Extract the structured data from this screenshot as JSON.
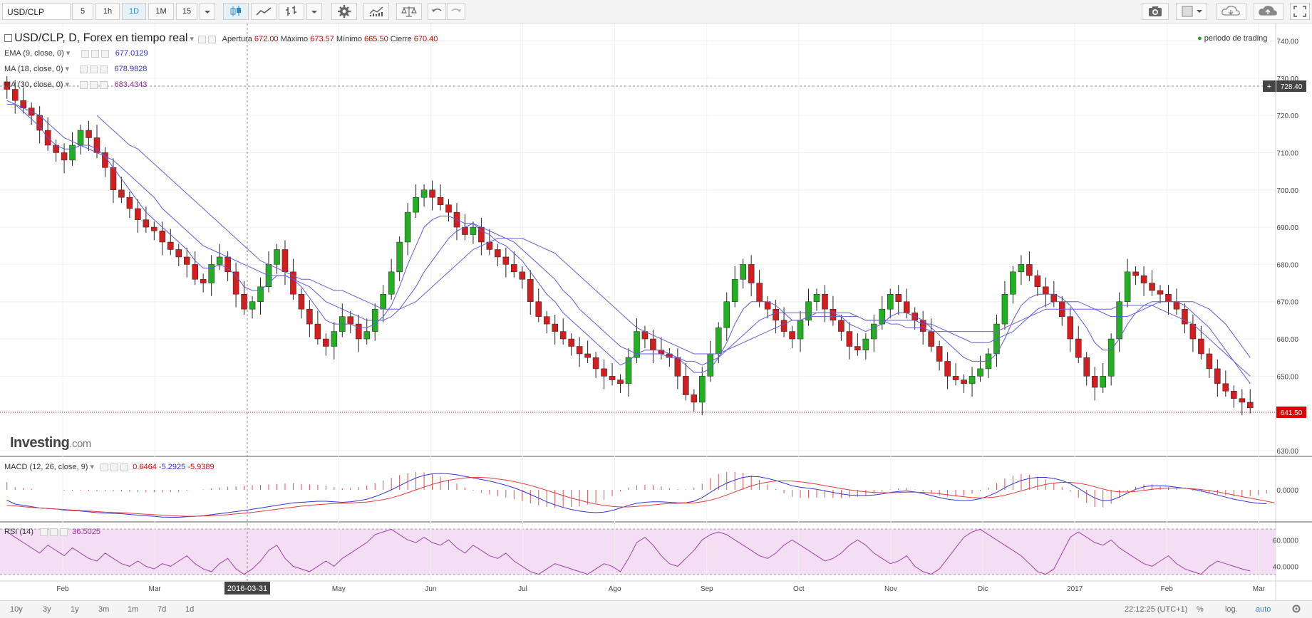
{
  "toolbar": {
    "symbol": "USD/CLP",
    "intervals": [
      "5",
      "1h",
      "1D",
      "1M",
      "15"
    ],
    "active_interval": "1D"
  },
  "legend": {
    "title": "USD/CLP, D, Forex en tiempo real",
    "open_label": "Apertura",
    "open": "672.00",
    "high_label": "Máximo",
    "high": "673.57",
    "low_label": "Mínimo",
    "low": "665.50",
    "close_label": "Cierre",
    "close": "670.40",
    "session_label": "periodo de trading",
    "ema_label": "EMA (9, close, 0)",
    "ema_value": "677.0129",
    "ma_label": "MA (18, close, 0)",
    "ma_value": "678.9828",
    "ma30_label": "MA (30, close, 0)",
    "ma30_value": "683.4343",
    "macd_label": "MACD (12, 26, close, 9)",
    "macd_hist": "0.6464",
    "macd_line": "-5.2925",
    "macd_signal": "-5.9389",
    "rsi_label": "RSI (14)",
    "rsi_value": "36.5025"
  },
  "watermark": {
    "brand": "Investing",
    "suffix": ".com"
  },
  "price_axis": {
    "labels": [
      "740.00",
      "730.00",
      "720.00",
      "710.00",
      "700.00",
      "690.00",
      "680.00",
      "670.00",
      "660.00",
      "650.00",
      "640.00",
      "630.00"
    ],
    "crosshair_price": "728.40",
    "last_price": "641.50"
  },
  "macd_axis": {
    "labels": [
      "0.0000"
    ]
  },
  "rsi_axis": {
    "labels": [
      "60.0000",
      "40.0000"
    ]
  },
  "time_axis": {
    "labels": [
      "Feb",
      "Mar",
      "2016-03-31",
      "May",
      "Jun",
      "Jul",
      "Ago",
      "Sep",
      "Oct",
      "Nov",
      "Dic",
      "2017",
      "Feb",
      "Mar"
    ]
  },
  "bottom_bar": {
    "ranges": [
      "10y",
      "3y",
      "1y",
      "3m",
      "1m",
      "7d",
      "1d"
    ],
    "clock": "22:12:25 (UTC+1)",
    "percent": "%",
    "log": "log.",
    "auto": "auto"
  },
  "colors": {
    "up": "#22b022",
    "down": "#d21e1e",
    "ema": "#5a5ae6",
    "ma": "#5a5ae6",
    "ma30": "#6b5ed8",
    "macd": "#3333dd",
    "signal": "#e83a3a",
    "rsi": "#a040a8",
    "rsi_band": "#f3def3"
  },
  "chart_data": {
    "type": "candlestick",
    "series_name": "USD/CLP",
    "y_range": [
      630,
      742
    ],
    "closes": [
      727,
      724,
      722,
      720,
      716,
      712,
      710,
      708,
      712,
      716,
      714,
      710,
      706,
      700,
      698,
      695,
      692,
      690,
      689,
      686,
      684,
      682,
      680,
      676,
      675,
      680,
      682,
      678,
      672,
      668,
      670,
      674,
      680,
      684,
      678,
      672,
      668,
      664,
      660,
      658,
      662,
      666,
      664,
      660,
      662,
      668,
      672,
      678,
      686,
      694,
      698,
      700,
      698,
      696,
      694,
      690,
      688,
      690,
      686,
      684,
      682,
      680,
      678,
      676,
      670,
      666,
      664,
      662,
      660,
      658,
      656,
      655,
      652,
      650,
      649,
      648,
      655,
      662,
      660,
      657,
      656,
      655,
      650,
      645,
      643,
      650,
      656,
      663,
      670,
      676,
      680,
      675,
      670,
      668,
      665,
      662,
      660,
      665,
      670,
      672,
      668,
      665,
      662,
      658,
      657,
      660,
      664,
      668,
      672,
      670,
      667,
      665,
      662,
      658,
      654,
      650,
      649,
      648,
      650,
      652,
      656,
      664,
      672,
      678,
      680,
      677,
      674,
      672,
      670,
      666,
      660,
      655,
      650,
      647,
      650,
      660,
      670,
      678,
      677,
      675,
      673,
      672,
      670,
      668,
      664,
      660,
      656,
      652,
      648,
      646,
      644,
      643,
      641.5
    ],
    "ema9": [
      724,
      723,
      721,
      719,
      717,
      714,
      712,
      711,
      711,
      712,
      712,
      711,
      709,
      706,
      703,
      700,
      697,
      694,
      692,
      690,
      688,
      686,
      684,
      681,
      679,
      679,
      680,
      679,
      677,
      674,
      673,
      673,
      675,
      677,
      677,
      676,
      674,
      671,
      668,
      665,
      664,
      664,
      664,
      663,
      663,
      664,
      666,
      669,
      674,
      680,
      685,
      690,
      692,
      693,
      693,
      692,
      691,
      691,
      689,
      688,
      686,
      685,
      683,
      681,
      678,
      675,
      672,
      670,
      667,
      665,
      663,
      661,
      659,
      657,
      655,
      653,
      654,
      656,
      657,
      657,
      657,
      656,
      655,
      653,
      651,
      651,
      652,
      655,
      659,
      664,
      668,
      670,
      670,
      670,
      669,
      667,
      665,
      665,
      666,
      667,
      667,
      667,
      666,
      664,
      663,
      662,
      663,
      664,
      666,
      667,
      667,
      666,
      665,
      663,
      661,
      659,
      657,
      655,
      654,
      654,
      654,
      656,
      660,
      665,
      669,
      671,
      672,
      672,
      672,
      671,
      669,
      666,
      663,
      659,
      657,
      657,
      660,
      664,
      667,
      669,
      670,
      670,
      670,
      670,
      669,
      667,
      665,
      663,
      660,
      657,
      654,
      651,
      648
    ],
    "ma18": [
      723,
      723,
      722,
      721,
      720,
      718,
      716,
      714,
      713,
      712,
      711,
      710,
      709,
      708,
      706,
      704,
      702,
      700,
      698,
      695,
      693,
      691,
      689,
      687,
      685,
      684,
      683,
      682,
      681,
      680,
      679,
      678,
      677,
      677,
      677,
      676,
      675,
      674,
      672,
      670,
      669,
      668,
      667,
      666,
      665,
      665,
      665,
      666,
      668,
      671,
      674,
      678,
      681,
      684,
      687,
      689,
      690,
      691,
      690,
      689,
      688,
      687,
      686,
      684,
      682,
      680,
      678,
      676,
      673,
      671,
      668,
      666,
      664,
      662,
      660,
      658,
      657,
      656,
      656,
      656,
      656,
      655,
      655,
      654,
      654,
      653,
      654,
      655,
      657,
      659,
      661,
      663,
      665,
      666,
      667,
      667,
      667,
      667,
      667,
      667,
      667,
      667,
      667,
      667,
      666,
      665,
      665,
      665,
      665,
      665,
      665,
      665,
      664,
      664,
      663,
      662,
      661,
      660,
      659,
      659,
      659,
      660,
      661,
      662,
      664,
      666,
      668,
      669,
      670,
      670,
      670,
      670,
      669,
      668,
      667,
      666,
      666,
      666,
      667,
      668,
      669,
      670,
      670,
      670,
      670,
      670,
      669,
      668,
      666,
      664,
      661,
      658,
      655
    ],
    "ma30": [
      null,
      null,
      null,
      null,
      null,
      null,
      null,
      null,
      null,
      null,
      null,
      720,
      718,
      716,
      714,
      712,
      711,
      709,
      707,
      705,
      703,
      701,
      699,
      697,
      695,
      693,
      691,
      689,
      687,
      685,
      683,
      681,
      680,
      679,
      678,
      677,
      676,
      676,
      675,
      674,
      673,
      673,
      672,
      671,
      670,
      669,
      668,
      668,
      668,
      669,
      670,
      672,
      674,
      676,
      678,
      680,
      682,
      684,
      685,
      686,
      687,
      687,
      687,
      687,
      686,
      685,
      684,
      683,
      681,
      679,
      677,
      675,
      673,
      671,
      669,
      667,
      665,
      663,
      662,
      661,
      660,
      659,
      658,
      657,
      656,
      656,
      656,
      656,
      657,
      658,
      659,
      660,
      661,
      662,
      663,
      664,
      665,
      665,
      666,
      666,
      666,
      666,
      666,
      666,
      666,
      665,
      665,
      665,
      664,
      664,
      663,
      663,
      663,
      662,
      662,
      662,
      662,
      662,
      662,
      662,
      662,
      662,
      663,
      664,
      665,
      666,
      667,
      668,
      668,
      668,
      668,
      668,
      668,
      668,
      668,
      668,
      669,
      669,
      669,
      669,
      669,
      668,
      667,
      666,
      665,
      664,
      662,
      660,
      658,
      656,
      654,
      652,
      650
    ],
    "macd": [
      -4,
      -5.5,
      -6,
      -6.5,
      -7,
      -7.2,
      -7.4,
      -7.8,
      -8,
      -8.2,
      -8.5,
      -8.8,
      -9,
      -9.1,
      -9.2,
      -9.5,
      -9.8,
      -10,
      -10.2,
      -10.5,
      -10.6,
      -10.6,
      -10.4,
      -10.2,
      -10,
      -9.6,
      -9.2,
      -8.8,
      -8.4,
      -8,
      -7.5,
      -7,
      -6.5,
      -6,
      -5.5,
      -5,
      -4.8,
      -4.6,
      -4.4,
      -4.4,
      -4.6,
      -4.8,
      -4.6,
      -4.2,
      -3.6,
      -2.6,
      -1.4,
      0,
      1.6,
      3.2,
      4.6,
      5.6,
      6.2,
      6.4,
      6.2,
      5.8,
      5.2,
      4.6,
      4,
      3.4,
      2.6,
      1.8,
      0.8,
      -0.4,
      -1.8,
      -3.2,
      -4.6,
      -5.8,
      -6.8,
      -7.6,
      -8.2,
      -8.6,
      -8.8,
      -8.6,
      -8,
      -7,
      -6,
      -5.2,
      -4.8,
      -4.6,
      -4.6,
      -4.8,
      -5,
      -5,
      -4.4,
      -3,
      -1,
      1,
      2.6,
      3.8,
      4.8,
      5.2,
      5,
      4.4,
      3.6,
      2.6,
      1.6,
      1,
      0.6,
      0.2,
      -0.4,
      -1,
      -1.6,
      -2,
      -2.2,
      -2.2,
      -2,
      -1.6,
      -1,
      -0.6,
      -0.4,
      -0.8,
      -1.4,
      -2.2,
      -3,
      -3.6,
      -4,
      -4.2,
      -4,
      -3.4,
      -2.4,
      -1,
      0.8,
      2.4,
      3.6,
      4.4,
      4.8,
      4.8,
      4.4,
      3.6,
      2.4,
      0.6,
      -1.4,
      -3.2,
      -4.2,
      -4,
      -2.8,
      -1.2,
      0.2,
      1.2,
      1.6,
      1.6,
      1.4,
      1,
      0.6,
      0.2,
      -0.4,
      -1.2,
      -2,
      -2.8,
      -3.6,
      -4.2,
      -4.8,
      -5.2,
      -5.4
    ],
    "macd_signal": [
      -6,
      -6.2,
      -6.5,
      -6.8,
      -7,
      -7.2,
      -7.4,
      -7.6,
      -7.8,
      -8,
      -8.2,
      -8.4,
      -8.6,
      -8.7,
      -8.8,
      -9,
      -9.2,
      -9.4,
      -9.6,
      -9.8,
      -10,
      -10.1,
      -10.2,
      -10.2,
      -10.1,
      -10,
      -9.8,
      -9.6,
      -9.3,
      -9,
      -8.7,
      -8.3,
      -7.9,
      -7.5,
      -7.1,
      -6.7,
      -6.3,
      -6,
      -5.7,
      -5.5,
      -5.3,
      -5.2,
      -5.1,
      -4.9,
      -4.7,
      -4.3,
      -3.8,
      -3.1,
      -2.2,
      -1.1,
      0,
      1.1,
      2.1,
      3,
      3.7,
      4.2,
      4.6,
      4.8,
      4.8,
      4.6,
      4.2,
      3.8,
      3.2,
      2.5,
      1.7,
      0.8,
      -0.2,
      -1.2,
      -2.2,
      -3.2,
      -4,
      -4.8,
      -5.5,
      -6,
      -6.4,
      -6.6,
      -6.6,
      -6.4,
      -6.1,
      -5.8,
      -5.5,
      -5.3,
      -5.2,
      -5.1,
      -5,
      -4.6,
      -4,
      -3.1,
      -2,
      -0.8,
      0.4,
      1.5,
      2.4,
      3,
      3.4,
      3.5,
      3.4,
      3.1,
      2.7,
      2.2,
      1.6,
      1.1,
      0.5,
      0,
      -0.4,
      -0.8,
      -1,
      -1.1,
      -1.1,
      -1,
      -0.9,
      -0.9,
      -1,
      -1.2,
      -1.5,
      -1.9,
      -2.3,
      -2.7,
      -3,
      -3.1,
      -3,
      -2.7,
      -2.1,
      -1.3,
      -0.4,
      0.5,
      1.4,
      2.1,
      2.6,
      2.9,
      2.9,
      2.6,
      2,
      1.2,
      0.3,
      -0.4,
      -0.8,
      -0.8,
      -0.6,
      -0.2,
      0.2,
      0.5,
      0.7,
      0.7,
      0.6,
      0.4,
      0.1,
      -0.3,
      -0.8,
      -1.4,
      -2,
      -2.6,
      -3.2,
      -3.8,
      -4.4,
      -5
    ],
    "rsi": [
      66,
      62,
      58,
      54,
      50,
      56,
      52,
      48,
      54,
      50,
      46,
      44,
      50,
      46,
      42,
      40,
      44,
      40,
      38,
      42,
      40,
      44,
      48,
      42,
      38,
      36,
      42,
      46,
      38,
      34,
      38,
      44,
      52,
      56,
      46,
      40,
      38,
      36,
      40,
      44,
      40,
      46,
      50,
      54,
      58,
      64,
      66,
      68,
      64,
      60,
      58,
      62,
      58,
      56,
      60,
      54,
      50,
      56,
      52,
      48,
      46,
      50,
      44,
      40,
      36,
      34,
      38,
      42,
      40,
      38,
      36,
      34,
      38,
      42,
      40,
      36,
      46,
      58,
      62,
      56,
      48,
      42,
      40,
      46,
      52,
      60,
      64,
      66,
      64,
      60,
      56,
      52,
      48,
      46,
      50,
      56,
      60,
      56,
      52,
      48,
      44,
      46,
      50,
      56,
      60,
      56,
      50,
      46,
      42,
      44,
      48,
      40,
      36,
      34,
      38,
      46,
      54,
      62,
      66,
      68,
      64,
      60,
      56,
      52,
      48,
      42,
      36,
      34,
      38,
      50,
      62,
      66,
      62,
      58,
      56,
      60,
      54,
      50,
      46,
      42,
      40,
      44,
      48,
      42,
      38,
      36,
      34,
      40,
      44,
      42,
      40,
      38,
      36.5
    ]
  }
}
